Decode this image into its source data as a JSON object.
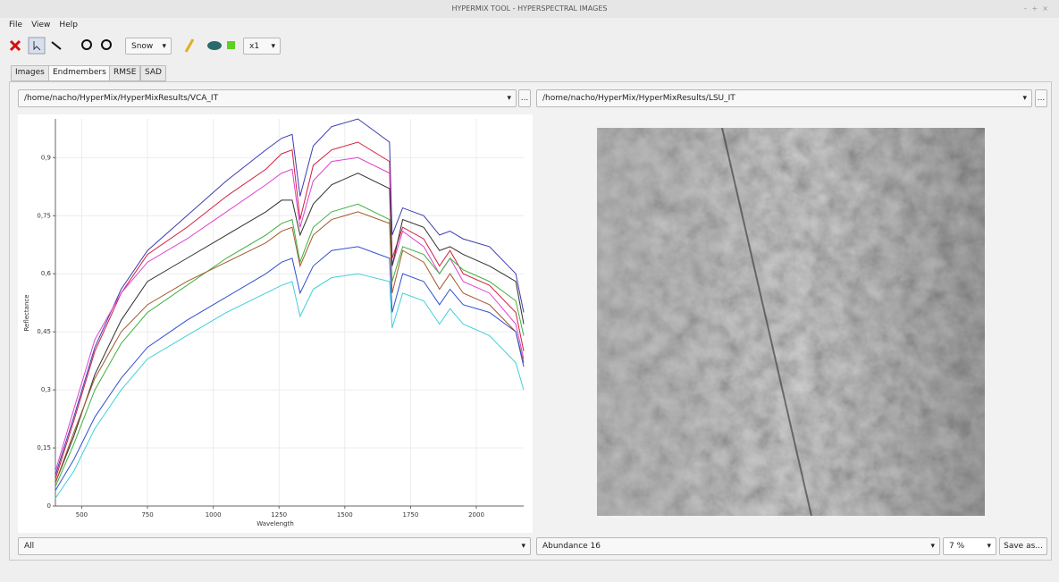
{
  "window": {
    "title": "HYPERMIX TOOL - HYPERSPECTRAL IMAGES"
  },
  "menu": [
    "File",
    "View",
    "Help"
  ],
  "toolbar": {
    "colormap": "Snow",
    "zoom": "x1"
  },
  "tabs": [
    "Images",
    "Endmembers",
    "RMSE",
    "SAD"
  ],
  "left_panel": {
    "path": "/home/nacho/HyperMix/HyperMixResults/VCA_IT",
    "browse": "...",
    "selector": "All"
  },
  "right_panel": {
    "path": "/home/nacho/HyperMix/HyperMixResults/LSU_IT",
    "browse": "...",
    "selector": "Abundance 16",
    "percent": "7 %",
    "save": "Save as..."
  },
  "chart_data": {
    "type": "line",
    "x_label": "Wavelength",
    "y_label": "Reflectance",
    "x": [
      400,
      470,
      550,
      650,
      750,
      900,
      1050,
      1200,
      1260,
      1300,
      1330,
      1380,
      1450,
      1550,
      1670,
      1680,
      1720,
      1800,
      1860,
      1900,
      1950,
      2050,
      2150,
      2180
    ],
    "series": [
      {
        "color": "#3b3bb0",
        "values": [
          0.08,
          0.23,
          0.41,
          0.56,
          0.66,
          0.75,
          0.84,
          0.92,
          0.95,
          0.96,
          0.8,
          0.93,
          0.98,
          1.0,
          0.94,
          0.7,
          0.77,
          0.75,
          0.7,
          0.71,
          0.69,
          0.67,
          0.6,
          0.5
        ]
      },
      {
        "color": "#d02040",
        "values": [
          0.07,
          0.22,
          0.4,
          0.55,
          0.65,
          0.72,
          0.8,
          0.87,
          0.91,
          0.92,
          0.74,
          0.88,
          0.92,
          0.94,
          0.89,
          0.64,
          0.72,
          0.69,
          0.62,
          0.66,
          0.6,
          0.57,
          0.5,
          0.4
        ]
      },
      {
        "color": "#e040d0",
        "values": [
          0.09,
          0.25,
          0.43,
          0.55,
          0.63,
          0.69,
          0.76,
          0.83,
          0.86,
          0.87,
          0.72,
          0.84,
          0.89,
          0.9,
          0.86,
          0.62,
          0.71,
          0.67,
          0.6,
          0.64,
          0.58,
          0.55,
          0.47,
          0.38
        ]
      },
      {
        "color": "#303030",
        "values": [
          0.06,
          0.18,
          0.34,
          0.48,
          0.58,
          0.64,
          0.7,
          0.76,
          0.79,
          0.79,
          0.7,
          0.78,
          0.83,
          0.86,
          0.82,
          0.62,
          0.74,
          0.72,
          0.66,
          0.67,
          0.65,
          0.62,
          0.58,
          0.47
        ]
      },
      {
        "color": "#40b040",
        "values": [
          0.05,
          0.16,
          0.3,
          0.42,
          0.5,
          0.57,
          0.64,
          0.7,
          0.73,
          0.74,
          0.63,
          0.72,
          0.76,
          0.78,
          0.74,
          0.58,
          0.67,
          0.65,
          0.6,
          0.64,
          0.61,
          0.58,
          0.53,
          0.44
        ]
      },
      {
        "color": "#a05a30",
        "values": [
          0.06,
          0.19,
          0.33,
          0.45,
          0.52,
          0.58,
          0.63,
          0.68,
          0.71,
          0.72,
          0.62,
          0.7,
          0.74,
          0.76,
          0.73,
          0.55,
          0.66,
          0.63,
          0.56,
          0.6,
          0.55,
          0.52,
          0.45,
          0.37
        ]
      },
      {
        "color": "#3050d0",
        "values": [
          0.04,
          0.12,
          0.23,
          0.33,
          0.41,
          0.48,
          0.54,
          0.6,
          0.63,
          0.64,
          0.55,
          0.62,
          0.66,
          0.67,
          0.64,
          0.5,
          0.6,
          0.58,
          0.52,
          0.56,
          0.52,
          0.5,
          0.45,
          0.36
        ]
      },
      {
        "color": "#40d0d8",
        "values": [
          0.02,
          0.09,
          0.2,
          0.3,
          0.38,
          0.44,
          0.5,
          0.55,
          0.57,
          0.58,
          0.49,
          0.56,
          0.59,
          0.6,
          0.58,
          0.46,
          0.55,
          0.53,
          0.47,
          0.51,
          0.47,
          0.44,
          0.37,
          0.3
        ]
      }
    ],
    "xlim": [
      400,
      2180
    ],
    "ylim": [
      0,
      1
    ],
    "xticks": [
      500,
      750,
      1000,
      1250,
      1500,
      1750,
      2000
    ],
    "yticks": [
      0,
      {
        "value": 0.15,
        "label": "0,15"
      },
      {
        "value": 0.3,
        "label": "0,3"
      },
      {
        "value": 0.45,
        "label": "0,45"
      },
      {
        "value": 0.6,
        "label": "0,6"
      },
      {
        "value": 0.75,
        "label": "0,75"
      },
      {
        "value": 0.9,
        "label": "0,9"
      }
    ],
    "grid": true
  }
}
